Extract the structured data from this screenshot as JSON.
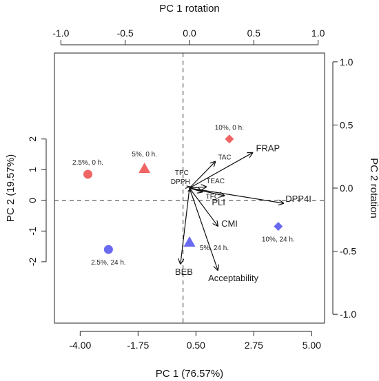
{
  "chart_data": {
    "type": "scatter",
    "subtype": "pca-biplot",
    "title": "",
    "xlabel": "PC 1 (76.57%)",
    "ylabel": "PC 2 (19.57%)",
    "top_xlabel": "PC 1 rotation",
    "right_ylabel": "PC 2 rotation",
    "xlim": [
      -5.0,
      5.5
    ],
    "ylim": [
      -4.0,
      4.8
    ],
    "xticks": [
      -4.0,
      -1.75,
      0.5,
      2.75,
      5.0
    ],
    "xtick_labels": [
      "-4.00",
      "-1.75",
      "0.50",
      "2.75",
      "5.00"
    ],
    "yticks": [
      -2,
      -1,
      0,
      1,
      2
    ],
    "yticks_labels": [
      "-2",
      "-1",
      "0",
      "1",
      "2"
    ],
    "rotation_xlim": [
      -1.05,
      1.05
    ],
    "rotation_ylim": [
      -1.07,
      1.07
    ],
    "top_xticks": [
      -1.0,
      -0.5,
      0.0,
      0.5,
      1.0
    ],
    "top_xtick_labels": [
      "-1.0",
      "-0.5",
      "0.0",
      "0.5",
      "1.0"
    ],
    "right_yticks": [
      -1.0,
      -0.5,
      0.0,
      0.5,
      1.0
    ],
    "right_ytick_labels": [
      "-1.0",
      "-0.5",
      "0.0",
      "0.5",
      "1.0"
    ],
    "reference_lines": {
      "x": 0,
      "y": 0,
      "style": "dashed"
    },
    "colors": {
      "red": "#f06464",
      "blue": "#6a6af0",
      "arrow": "#111111"
    },
    "points": [
      {
        "label": "2.5%, 0 h.",
        "x": -3.7,
        "y": 0.85,
        "shape": "circle",
        "color": "red"
      },
      {
        "label": "5%, 0 h.",
        "x": -1.5,
        "y": 1.05,
        "shape": "triangle",
        "color": "red"
      },
      {
        "label": "10%, 0 h.",
        "x": 1.8,
        "y": 2.0,
        "shape": "diamond",
        "color": "red"
      },
      {
        "label": "2.5%, 24 h.",
        "x": -2.9,
        "y": -1.6,
        "shape": "circle",
        "color": "blue"
      },
      {
        "label": "5%, 24 h.",
        "x": 0.25,
        "y": -1.35,
        "shape": "triangle",
        "color": "blue"
      },
      {
        "label": "10%, 24 h.",
        "x": 3.7,
        "y": -0.85,
        "shape": "diamond",
        "color": "blue"
      }
    ],
    "loadings": [
      {
        "label": "TPC",
        "x": 0.01,
        "y": 0.01
      },
      {
        "label": "DPPH",
        "x": 0.02,
        "y": 0.005
      },
      {
        "label": "TAC",
        "x": 0.2,
        "y": 0.21
      },
      {
        "label": "FRAP",
        "x": 0.49,
        "y": 0.28
      },
      {
        "label": "TEAC",
        "x": 0.13,
        "y": 0.01
      },
      {
        "label": "TFC",
        "x": 0.1,
        "y": -0.03
      },
      {
        "label": "PLI",
        "x": 0.27,
        "y": -0.06
      },
      {
        "label": "DPP4I",
        "x": 0.73,
        "y": -0.12
      },
      {
        "label": "CMI",
        "x": 0.22,
        "y": -0.3
      },
      {
        "label": "BEB",
        "x": -0.07,
        "y": -0.6
      },
      {
        "label": "Acceptability",
        "x": 0.22,
        "y": -0.65
      }
    ]
  }
}
